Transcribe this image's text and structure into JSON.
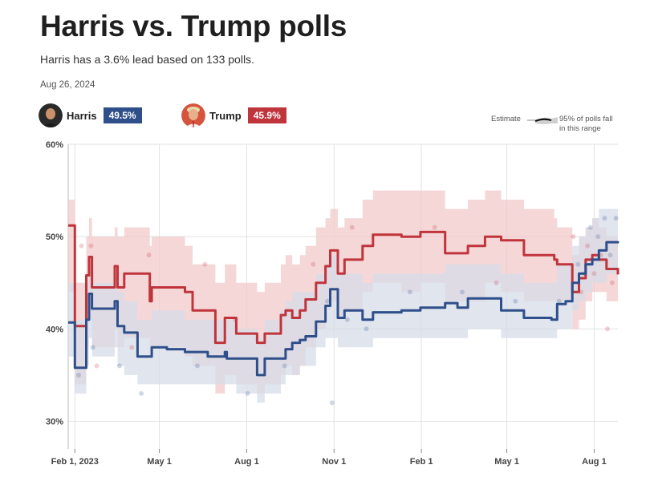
{
  "header": {
    "title": "Harris vs. Trump polls",
    "subtitle": "Harris has a 3.6% lead based on 133 polls.",
    "date": "Aug 26, 2024"
  },
  "candidates": [
    {
      "name": "Harris",
      "value": "49.5%",
      "color": "#2f4f8a"
    },
    {
      "name": "Trump",
      "value": "45.9%",
      "color": "#c0343c"
    }
  ],
  "legend": {
    "estimate": "Estimate",
    "range_line1": "95% of polls fall",
    "range_line2": "in this range"
  },
  "chart_data": {
    "type": "line",
    "x_tick_labels": [
      "Feb 1, 2023",
      "May 1",
      "Aug 1",
      "Nov 1",
      "Feb 1",
      "May 1",
      "Aug 1"
    ],
    "x_tick_dates": [
      "2023-02-01",
      "2023-05-01",
      "2023-08-01",
      "2023-11-01",
      "2024-02-01",
      "2024-05-01",
      "2024-08-01"
    ],
    "xlim": [
      "2023-01-25",
      "2024-08-26"
    ],
    "ylim": [
      27,
      60
    ],
    "y_ticks": [
      30,
      40,
      50,
      60
    ],
    "y_tick_labels": [
      "30%",
      "40%",
      "50%",
      "60%"
    ],
    "grid": true,
    "series": [
      {
        "name": "Trump",
        "color": "#c0343c",
        "band_color": "#f2c9cb",
        "x": [
          "2023-01-25",
          "2023-01-31",
          "2023-02-01",
          "2023-02-11",
          "2023-02-13",
          "2023-02-16",
          "2023-02-19",
          "2023-02-21",
          "2023-03-06",
          "2023-03-15",
          "2023-03-18",
          "2023-03-22",
          "2023-03-25",
          "2023-04-08",
          "2023-04-21",
          "2023-04-23",
          "2023-05-09",
          "2023-05-28",
          "2023-06-05",
          "2023-06-21",
          "2023-06-29",
          "2023-07-09",
          "2023-07-11",
          "2023-07-21",
          "2023-08-05",
          "2023-08-12",
          "2023-08-18",
          "2023-08-20",
          "2023-09-03",
          "2023-09-06",
          "2023-09-11",
          "2023-09-18",
          "2023-09-26",
          "2023-10-02",
          "2023-10-13",
          "2023-10-23",
          "2023-10-28",
          "2023-11-02",
          "2023-11-05",
          "2023-11-12",
          "2023-12-01",
          "2023-12-12",
          "2024-01-06",
          "2024-01-11",
          "2024-01-26",
          "2024-01-31",
          "2024-02-20",
          "2024-02-26",
          "2024-03-10",
          "2024-03-21",
          "2024-04-08",
          "2024-04-25",
          "2024-05-01",
          "2024-05-19",
          "2024-06-17",
          "2024-06-20",
          "2024-06-23",
          "2024-07-02",
          "2024-07-09",
          "2024-07-16",
          "2024-07-23",
          "2024-07-30",
          "2024-08-06",
          "2024-08-14",
          "2024-08-26"
        ],
        "values": [
          51.2,
          51.2,
          40.3,
          40.3,
          45.8,
          47.8,
          44.5,
          44.5,
          44.5,
          46.8,
          44.5,
          44.5,
          46.0,
          46.0,
          43.0,
          44.5,
          44.5,
          44.0,
          42.0,
          42.0,
          38.5,
          41.2,
          41.2,
          39.5,
          39.5,
          38.5,
          38.5,
          39.5,
          39.5,
          41.5,
          42.0,
          41.2,
          42.0,
          43.2,
          45.0,
          46.8,
          48.5,
          48.5,
          46.0,
          47.5,
          49.0,
          50.2,
          50.2,
          50.0,
          50.0,
          50.5,
          50.5,
          48.2,
          48.2,
          49.0,
          50.0,
          49.6,
          49.6,
          48.0,
          48.0,
          47.5,
          47.0,
          47.0,
          44.0,
          45.5,
          47.5,
          48.0,
          47.5,
          46.5,
          45.9
        ],
        "band_lower": [
          44,
          44,
          34,
          34,
          38,
          41,
          38,
          38,
          38,
          40,
          38,
          38,
          39,
          39,
          37,
          38,
          38,
          37,
          36,
          36,
          33,
          35,
          35,
          34,
          34,
          33,
          33,
          34,
          34,
          35,
          36,
          35,
          36,
          38,
          40,
          42,
          43,
          43,
          41,
          42,
          44,
          45,
          45,
          44,
          44,
          45,
          45,
          43,
          43,
          43,
          45,
          44,
          44,
          43,
          43,
          43,
          43,
          43,
          40,
          41,
          43,
          44,
          44,
          43,
          43
        ],
        "band_upper": [
          54,
          54,
          45,
          45,
          50,
          52,
          50,
          50,
          50,
          51,
          50,
          50,
          51,
          51,
          49,
          50,
          50,
          49,
          47,
          47,
          45,
          47,
          47,
          45,
          45,
          44,
          44,
          45,
          45,
          47,
          48,
          47,
          48,
          49,
          51,
          52,
          53,
          53,
          51,
          52,
          54,
          55,
          55,
          55,
          55,
          55,
          55,
          53,
          53,
          54,
          55,
          54,
          54,
          53,
          53,
          52,
          51,
          51,
          48,
          50,
          51,
          52,
          51,
          50,
          49
        ]
      },
      {
        "name": "Harris",
        "color": "#2f4f8a",
        "band_color": "#d6dce8",
        "x": [
          "2023-01-25",
          "2023-01-31",
          "2023-02-01",
          "2023-02-11",
          "2023-02-13",
          "2023-02-16",
          "2023-02-19",
          "2023-02-21",
          "2023-03-06",
          "2023-03-15",
          "2023-03-18",
          "2023-03-22",
          "2023-03-25",
          "2023-04-08",
          "2023-04-21",
          "2023-04-23",
          "2023-05-09",
          "2023-05-28",
          "2023-06-05",
          "2023-06-21",
          "2023-06-29",
          "2023-07-09",
          "2023-07-11",
          "2023-07-21",
          "2023-08-05",
          "2023-08-12",
          "2023-08-18",
          "2023-08-20",
          "2023-09-03",
          "2023-09-06",
          "2023-09-11",
          "2023-09-18",
          "2023-09-26",
          "2023-10-02",
          "2023-10-13",
          "2023-10-23",
          "2023-10-28",
          "2023-11-02",
          "2023-11-05",
          "2023-11-12",
          "2023-12-01",
          "2023-12-12",
          "2024-01-06",
          "2024-01-11",
          "2024-01-26",
          "2024-01-31",
          "2024-02-20",
          "2024-02-26",
          "2024-03-10",
          "2024-03-21",
          "2024-04-08",
          "2024-04-25",
          "2024-05-01",
          "2024-05-19",
          "2024-06-17",
          "2024-06-20",
          "2024-06-23",
          "2024-07-02",
          "2024-07-09",
          "2024-07-16",
          "2024-07-23",
          "2024-07-30",
          "2024-08-06",
          "2024-08-14",
          "2024-08-26"
        ],
        "values": [
          40.7,
          40.7,
          35.8,
          35.8,
          41.0,
          43.8,
          42.2,
          42.2,
          42.2,
          43.0,
          40.3,
          40.3,
          39.6,
          37.0,
          37.0,
          38.0,
          37.8,
          37.5,
          37.5,
          37.0,
          37.0,
          37.5,
          36.8,
          36.8,
          36.8,
          35.0,
          35.0,
          36.8,
          36.8,
          36.8,
          37.8,
          38.5,
          38.8,
          39.2,
          40.8,
          42.5,
          44.3,
          44.3,
          41.2,
          42.0,
          41.0,
          41.8,
          41.8,
          42.0,
          42.0,
          42.3,
          42.3,
          42.8,
          42.3,
          43.3,
          43.3,
          42.0,
          42.0,
          41.2,
          41.0,
          41.0,
          42.7,
          43.0,
          45.0,
          46.0,
          47.0,
          47.5,
          48.5,
          49.4,
          49.5
        ],
        "band_lower": [
          37,
          37,
          33,
          33,
          36,
          39,
          37,
          37,
          37,
          38,
          36,
          36,
          35,
          34,
          34,
          34,
          34,
          34,
          34,
          34,
          34,
          34,
          34,
          33,
          33,
          32,
          32,
          33,
          33,
          34,
          35,
          35,
          36,
          36,
          38,
          39,
          39,
          39,
          38,
          38,
          38,
          39,
          39,
          39,
          39,
          39,
          39,
          39,
          39,
          40,
          40,
          39,
          39,
          39,
          39,
          39,
          40,
          40,
          42,
          43,
          44,
          45,
          45,
          46,
          46
        ],
        "band_upper": [
          45,
          45,
          41,
          41,
          45,
          46,
          45,
          45,
          45,
          46,
          44,
          44,
          43,
          41,
          41,
          42,
          42,
          41,
          41,
          41,
          41,
          41,
          41,
          40,
          40,
          39,
          39,
          41,
          41,
          42,
          43,
          44,
          44,
          44,
          46,
          47,
          48,
          48,
          46,
          46,
          45,
          46,
          46,
          46,
          46,
          46,
          46,
          47,
          47,
          47,
          47,
          46,
          46,
          45,
          45,
          45,
          47,
          47,
          49,
          50,
          51,
          52,
          53,
          53,
          53
        ]
      }
    ],
    "polls": [
      {
        "x": "2023-02-05",
        "y": 35,
        "s": "Harris"
      },
      {
        "x": "2023-02-08",
        "y": 49,
        "s": "Trump"
      },
      {
        "x": "2023-02-18",
        "y": 49,
        "s": "Trump"
      },
      {
        "x": "2023-02-20",
        "y": 38,
        "s": "Harris"
      },
      {
        "x": "2023-02-24",
        "y": 36,
        "s": "Trump"
      },
      {
        "x": "2023-03-20",
        "y": 36,
        "s": "Harris"
      },
      {
        "x": "2023-04-02",
        "y": 38,
        "s": "Trump"
      },
      {
        "x": "2023-04-12",
        "y": 33,
        "s": "Harris"
      },
      {
        "x": "2023-04-20",
        "y": 48,
        "s": "Trump"
      },
      {
        "x": "2023-06-10",
        "y": 36,
        "s": "Harris"
      },
      {
        "x": "2023-06-18",
        "y": 47,
        "s": "Trump"
      },
      {
        "x": "2023-07-20",
        "y": 41,
        "s": "Trump"
      },
      {
        "x": "2023-08-02",
        "y": 33,
        "s": "Harris"
      },
      {
        "x": "2023-09-10",
        "y": 36,
        "s": "Harris"
      },
      {
        "x": "2023-10-10",
        "y": 47,
        "s": "Trump"
      },
      {
        "x": "2023-10-25",
        "y": 43,
        "s": "Harris"
      },
      {
        "x": "2023-10-30",
        "y": 32,
        "s": "Harris"
      },
      {
        "x": "2023-11-15",
        "y": 41,
        "s": "Harris"
      },
      {
        "x": "2023-11-20",
        "y": 51,
        "s": "Trump"
      },
      {
        "x": "2023-12-05",
        "y": 40,
        "s": "Harris"
      },
      {
        "x": "2024-01-20",
        "y": 44,
        "s": "Harris"
      },
      {
        "x": "2024-02-15",
        "y": 51,
        "s": "Trump"
      },
      {
        "x": "2024-03-15",
        "y": 44,
        "s": "Harris"
      },
      {
        "x": "2024-04-20",
        "y": 45,
        "s": "Trump"
      },
      {
        "x": "2024-05-10",
        "y": 43,
        "s": "Harris"
      },
      {
        "x": "2024-06-25",
        "y": 43,
        "s": "Harris"
      },
      {
        "x": "2024-07-10",
        "y": 50,
        "s": "Trump"
      },
      {
        "x": "2024-07-15",
        "y": 47,
        "s": "Harris"
      },
      {
        "x": "2024-07-18",
        "y": 44,
        "s": "Trump"
      },
      {
        "x": "2024-07-22",
        "y": 46,
        "s": "Harris"
      },
      {
        "x": "2024-07-25",
        "y": 49,
        "s": "Trump"
      },
      {
        "x": "2024-07-28",
        "y": 51,
        "s": "Harris"
      },
      {
        "x": "2024-08-01",
        "y": 46,
        "s": "Trump"
      },
      {
        "x": "2024-08-05",
        "y": 50,
        "s": "Harris"
      },
      {
        "x": "2024-08-08",
        "y": 48,
        "s": "Trump"
      },
      {
        "x": "2024-08-12",
        "y": 52,
        "s": "Harris"
      },
      {
        "x": "2024-08-15",
        "y": 40,
        "s": "Trump"
      },
      {
        "x": "2024-08-18",
        "y": 48,
        "s": "Harris"
      },
      {
        "x": "2024-08-20",
        "y": 45,
        "s": "Trump"
      },
      {
        "x": "2024-08-24",
        "y": 52,
        "s": "Harris"
      }
    ]
  }
}
